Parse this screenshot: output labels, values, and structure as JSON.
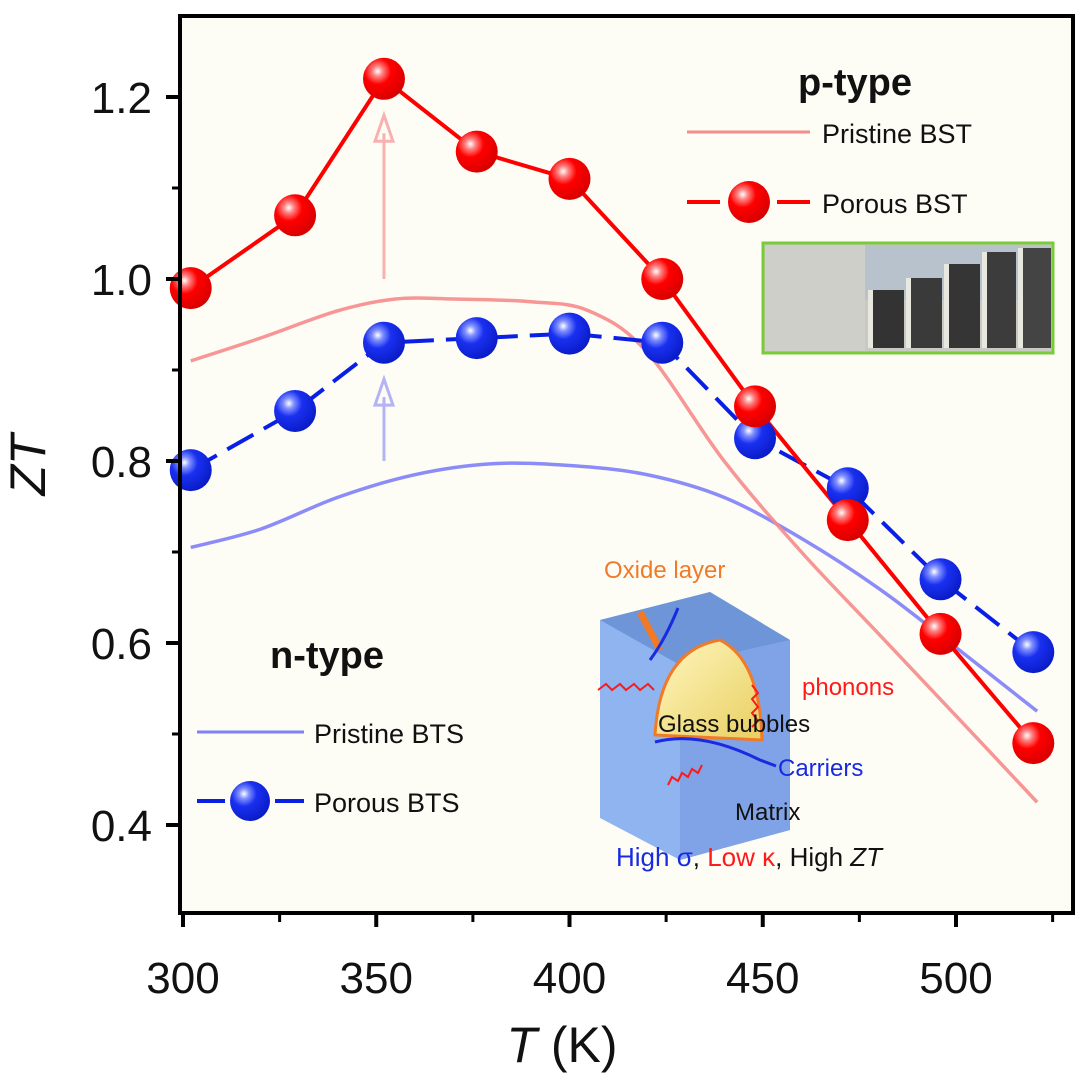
{
  "chart_data": {
    "type": "line",
    "title": "",
    "xlabel": "T (K)",
    "xlabel_italic_part": "T",
    "xlabel_unit": " (K)",
    "ylabel": "ZT",
    "xlim": [
      290,
      530
    ],
    "ylim": [
      0.3,
      1.3
    ],
    "x_ticks": [
      300,
      350,
      400,
      450,
      500
    ],
    "x_tick_labels": [
      "300",
      "350",
      "400",
      "450",
      "500"
    ],
    "x_minor_ticks": [
      325,
      375,
      425,
      475,
      525
    ],
    "y_ticks": [
      0.4,
      0.6,
      0.8,
      1.0,
      1.2
    ],
    "y_tick_labels": [
      "0.4",
      "0.6",
      "0.8",
      "1.0",
      "1.2"
    ],
    "y_minor_ticks": [
      0.5,
      0.7,
      0.9,
      1.1
    ],
    "grid": false,
    "series": [
      {
        "name": "Pristine BST",
        "group": "p-type",
        "style": "line",
        "color": "#f58b8b",
        "x": [
          302,
          320,
          340,
          355,
          370,
          390,
          405,
          420,
          440,
          460,
          480,
          500,
          521
        ],
        "y": [
          0.91,
          0.935,
          0.965,
          0.978,
          0.978,
          0.975,
          0.965,
          0.92,
          0.8,
          0.7,
          0.61,
          0.52,
          0.425
        ]
      },
      {
        "name": "Porous BST",
        "group": "p-type",
        "style": "line-marker",
        "color": "#ff0000",
        "x": [
          302,
          329,
          352,
          376,
          400,
          424,
          448,
          472,
          496,
          520
        ],
        "y": [
          0.99,
          1.07,
          1.22,
          1.14,
          1.11,
          1.0,
          0.86,
          0.735,
          0.61,
          0.49
        ]
      },
      {
        "name": "Pristine BTS",
        "group": "n-type",
        "style": "line",
        "color": "#8080f8",
        "x": [
          302,
          320,
          340,
          360,
          380,
          400,
          420,
          440,
          460,
          480,
          500,
          521
        ],
        "y": [
          0.705,
          0.725,
          0.76,
          0.785,
          0.797,
          0.795,
          0.785,
          0.76,
          0.715,
          0.66,
          0.595,
          0.525
        ]
      },
      {
        "name": "Porous BTS",
        "group": "n-type",
        "style": "dashed-line-marker",
        "color": "#0a1fe6",
        "x": [
          302,
          329,
          352,
          376,
          400,
          424,
          448,
          472,
          496,
          520
        ],
        "y": [
          0.79,
          0.855,
          0.93,
          0.935,
          0.94,
          0.93,
          0.825,
          0.77,
          0.67,
          0.59
        ]
      }
    ],
    "legends": [
      {
        "title": "p-type",
        "placement": "top-right",
        "entries": [
          "Pristine BST",
          "Porous BST"
        ]
      },
      {
        "title": "n-type",
        "placement": "bottom-left",
        "entries": [
          "Pristine BTS",
          "Porous BTS"
        ]
      }
    ],
    "annotations": [
      {
        "type": "arrow",
        "color": "#f9b0b0",
        "x": 352,
        "y_from": 1.0,
        "y_to": 1.18,
        "note": "enhancement arrow p-type"
      },
      {
        "type": "arrow",
        "color": "#b4b4f5",
        "x": 352,
        "y_from": 0.8,
        "y_to": 0.89,
        "note": "enhancement arrow n-type"
      }
    ]
  },
  "inset_photo": {
    "description": "photo of BST pellets of increasing height beside a ruler",
    "border_color": "#7acb3a"
  },
  "schematic": {
    "oxide_label": "Oxide layer",
    "phonons_label": "phonons",
    "bubbles_label": "Glass bubbles",
    "carriers_label": "Carriers",
    "matrix_label": "Matrix",
    "summary_part1": "High σ",
    "summary_sep1": ", ",
    "summary_part2": "Low κ",
    "summary_sep2": ", High ",
    "summary_part3": "ZT",
    "colors": {
      "oxide": "#f07a28",
      "phonons": "#ff1a1a",
      "carriers": "#1a2ae0",
      "matrix": "#8fb4f0",
      "bubble": "#f6e68e"
    }
  },
  "colors": {
    "plot_bg": "#fdfdf6",
    "axis": "#000000"
  }
}
